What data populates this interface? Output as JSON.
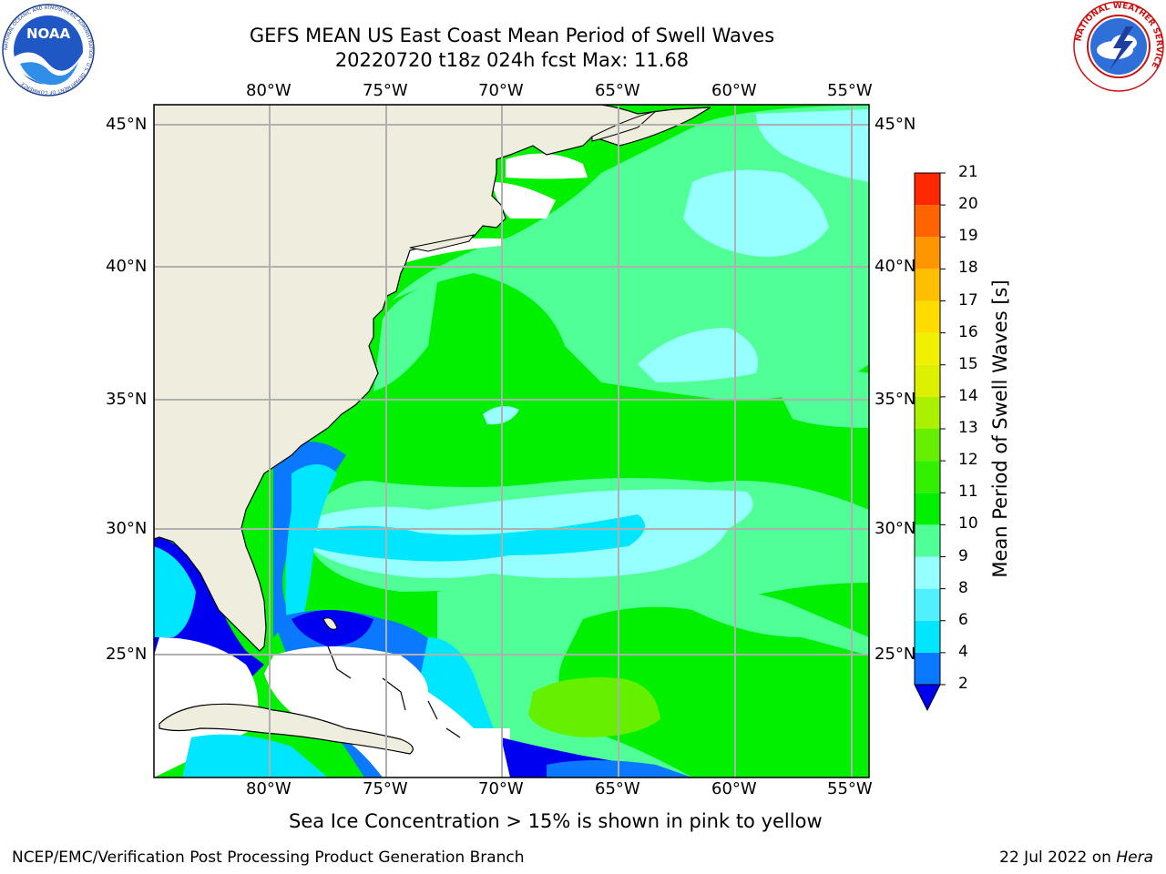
{
  "title": {
    "line1": "GEFS MEAN US East Coast Mean Period of Swell Waves",
    "line2": "20220720 t18z 024h fcst   Max: 11.68"
  },
  "logos": {
    "left": {
      "name": "noaa-logo",
      "text": "NOAA",
      "ring_text": "NATIONAL OCEANIC AND ATMOSPHERIC ADMINISTRATION · U.S. DEPARTMENT OF COMMERCE"
    },
    "right": {
      "name": "nws-logo",
      "ring_text": "NATIONAL WEATHER SERVICE"
    }
  },
  "map": {
    "lon_labels": [
      "80°W",
      "75°W",
      "70°W",
      "65°W",
      "60°W",
      "55°W"
    ],
    "lat_labels": [
      "45°N",
      "40°N",
      "35°N",
      "30°N",
      "25°N"
    ],
    "colors": {
      "land": "#efedde",
      "white": "#ffffff",
      "blue": "#0000f0",
      "medblue": "#0a78ff",
      "cyan": "#00e6ff",
      "lightcyan": "#96ffff",
      "mint": "#50ff96",
      "green": "#00f000",
      "lime": "#64f000",
      "gridline": "#b0b0b0"
    }
  },
  "colorbar": {
    "title": "Mean Period of Swell Waves [s]",
    "ticks": [
      "2",
      "4",
      "6",
      "8",
      "9",
      "10",
      "11",
      "12",
      "13",
      "14",
      "15",
      "16",
      "17",
      "18",
      "19",
      "20",
      "21"
    ],
    "colors": [
      "#0a78ff",
      "#00e6ff",
      "#50f0ff",
      "#96ffff",
      "#50ff96",
      "#00f000",
      "#32f000",
      "#64f000",
      "#aaf000",
      "#dcf000",
      "#f0f000",
      "#ffdc00",
      "#ffbe00",
      "#ff9600",
      "#ff6400",
      "#ff2800"
    ],
    "extend_color": "#0000f0"
  },
  "caption": "Sea Ice Concentration > 15% is shown in pink to yellow",
  "footer": {
    "left": "NCEP/EMC/Verification Post Processing Product Generation Branch",
    "right_date": "22 Jul 2022 on ",
    "right_machine": "Hera"
  }
}
